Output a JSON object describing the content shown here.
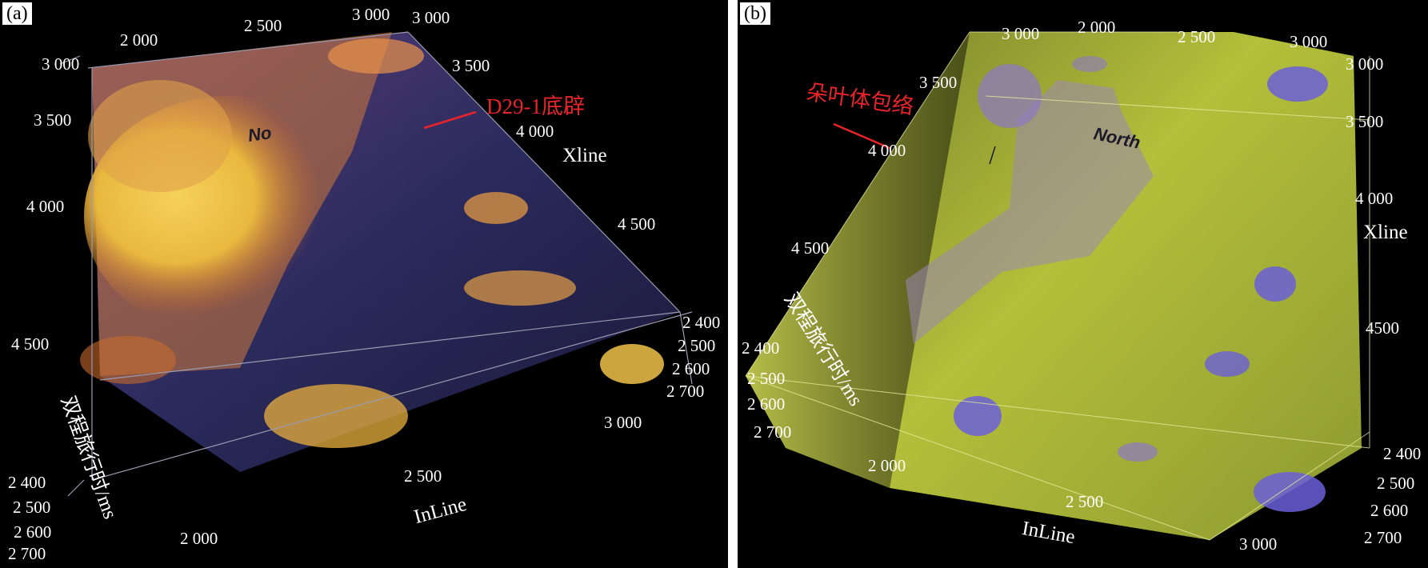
{
  "panels": [
    {
      "tag": "(a)",
      "xline_ticks": [
        "2 000",
        "2 500",
        "3 000",
        "3 000",
        "3 500",
        "4 000",
        "4 500"
      ],
      "left_ticks": [
        "3 000",
        "3 500",
        "4 000",
        "4 500"
      ],
      "time_ticks_right": [
        "2 400",
        "2 500",
        "2 600",
        "2 700"
      ],
      "time_ticks_left": [
        "2 400",
        "2 500",
        "2 600",
        "2 700"
      ],
      "inline_ticks": [
        "2 000",
        "2 500",
        "3 000"
      ],
      "xline_label": "Xline",
      "inline_label": "InLine",
      "time_label": "双程旅行时/ms",
      "callout": "D29-1底辟",
      "north_text": "No"
    },
    {
      "tag": "(b)",
      "top_ticks": [
        "3 000",
        "2 000",
        "2 500",
        "3 000"
      ],
      "left_ticks": [
        "3 500",
        "4 000",
        "4 500"
      ],
      "right_ticks": [
        "3 000",
        "3 500",
        "4 000",
        "4500"
      ],
      "time_ticks_left": [
        "2 400",
        "2 500",
        "2 600",
        "2 700"
      ],
      "time_ticks_right": [
        "2 400",
        "2 500",
        "2 600",
        "2 700"
      ],
      "inline_ticks": [
        "2 000",
        "2 500",
        "3 000"
      ],
      "xline_label": "Xline",
      "inline_label": "InLine",
      "time_label": "双程旅行时/ms",
      "callout": "朵叶体包络",
      "north_text": "North"
    }
  ],
  "colors": {
    "panel_a_fill": "#f2c84a",
    "panel_a_dark": "#2b2650",
    "panel_b_fill": "#c9d23e",
    "panel_b_blue": "#6a5fd8",
    "callout": "#e8242a"
  }
}
